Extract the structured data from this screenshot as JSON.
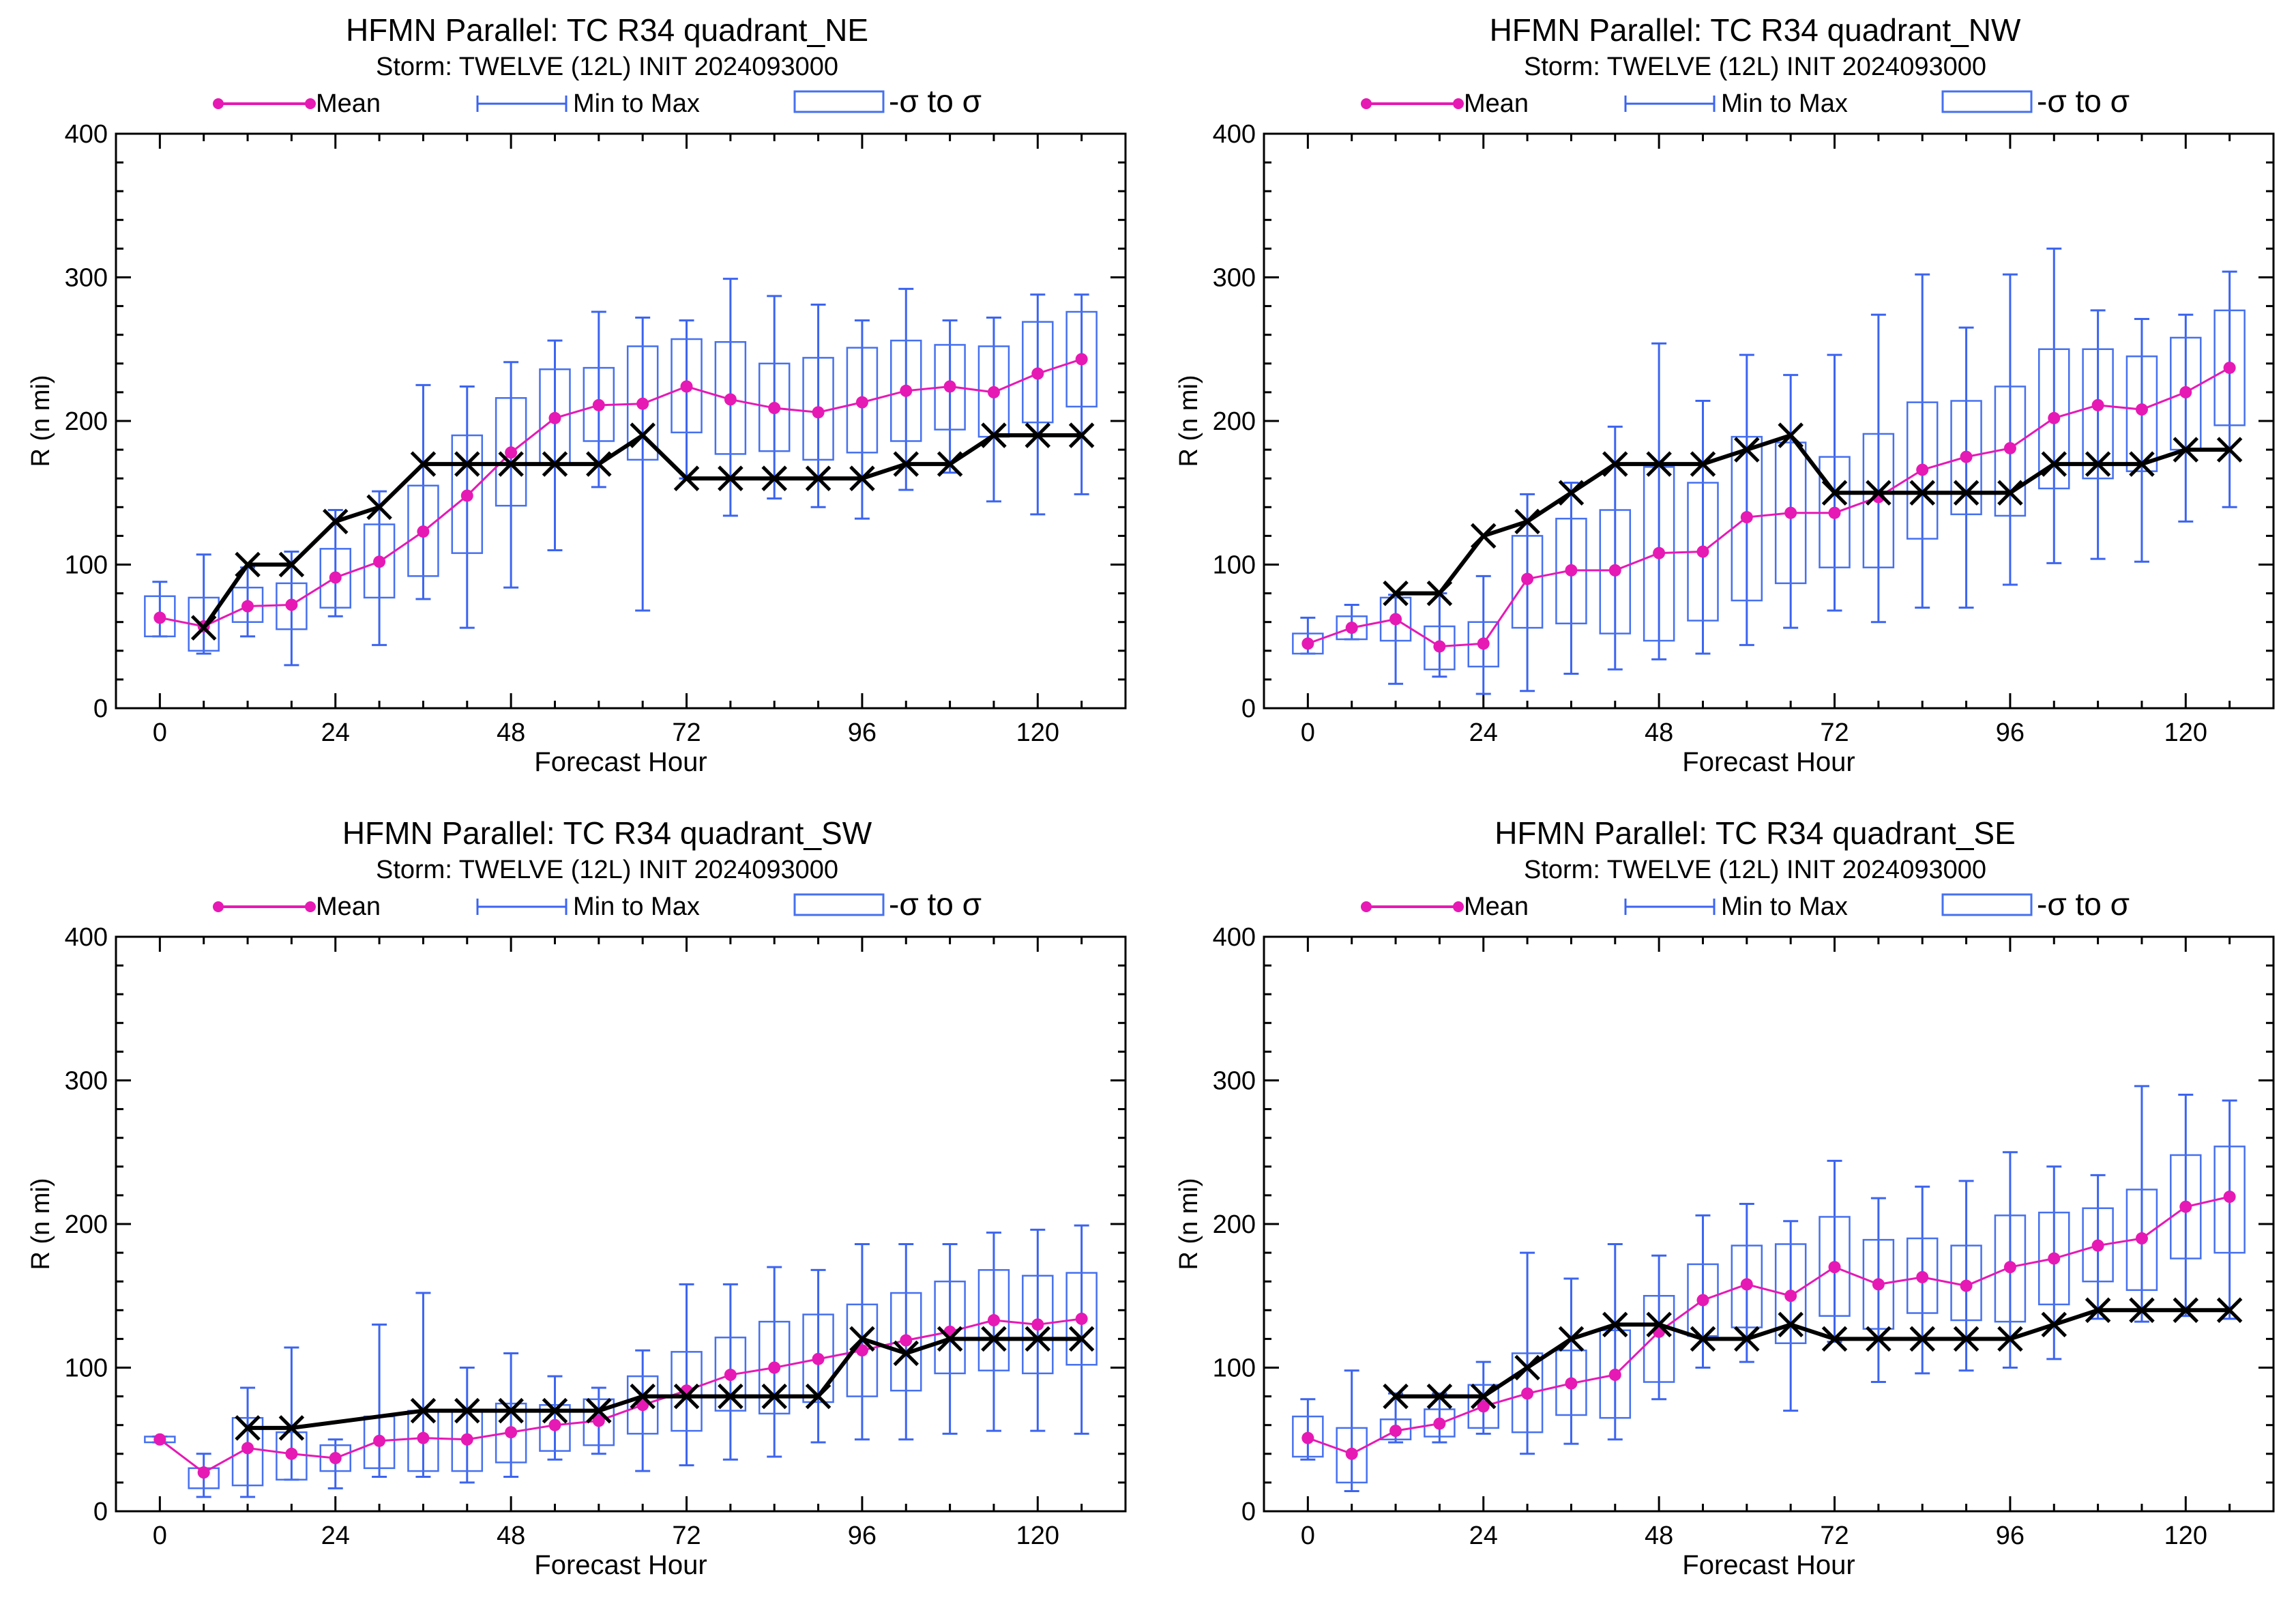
{
  "legend_labels": {
    "mean": "Mean",
    "minmax": "Min to Max",
    "sigma": "-σ to σ"
  },
  "colors": {
    "mean": "#e619b4",
    "minmax": "#3c64f0",
    "box": "#4670ee",
    "observed": "#000000"
  },
  "chart_data": [
    {
      "type": "box",
      "title": "HFMN Parallel: TC  R34 quadrant_NE",
      "subtitle": "Storm: TWELVE (12L) INIT 2024093000",
      "xlabel": "Forecast Hour",
      "ylabel": "R (n mi)",
      "xlim": [
        -6,
        132
      ],
      "ylim": [
        0,
        400
      ],
      "xticks": [
        0,
        24,
        48,
        72,
        96,
        120
      ],
      "yticks": [
        0,
        100,
        200,
        300,
        400
      ],
      "x": [
        0,
        6,
        12,
        18,
        24,
        30,
        36,
        42,
        48,
        54,
        60,
        66,
        72,
        78,
        84,
        90,
        96,
        102,
        108,
        114,
        120,
        126
      ],
      "mean": [
        63,
        57,
        71,
        72,
        91,
        102,
        123,
        148,
        178,
        202,
        211,
        212,
        224,
        215,
        209,
        206,
        213,
        221,
        224,
        220,
        233,
        243
      ],
      "min": [
        50,
        38,
        50,
        30,
        64,
        44,
        76,
        56,
        84,
        110,
        154,
        68,
        160,
        134,
        146,
        140,
        132,
        152,
        164,
        144,
        135,
        149
      ],
      "max": [
        88,
        107,
        98,
        109,
        138,
        151,
        225,
        224,
        241,
        256,
        276,
        272,
        270,
        299,
        287,
        281,
        270,
        292,
        270,
        272,
        288,
        288
      ],
      "sigma_low": [
        50,
        40,
        60,
        55,
        70,
        77,
        92,
        108,
        141,
        170,
        186,
        173,
        192,
        177,
        179,
        173,
        178,
        186,
        194,
        189,
        199,
        210
      ],
      "sigma_high": [
        78,
        77,
        84,
        87,
        111,
        128,
        155,
        190,
        216,
        236,
        237,
        252,
        257,
        255,
        240,
        244,
        251,
        256,
        253,
        252,
        269,
        276
      ],
      "observed": {
        "x": [
          6,
          12,
          18,
          24,
          30,
          36,
          42,
          48,
          54,
          60,
          66,
          72,
          78,
          84,
          90,
          96,
          102,
          108,
          114,
          120,
          126
        ],
        "y": [
          56,
          100,
          100,
          130,
          140,
          170,
          170,
          170,
          170,
          170,
          190,
          160,
          160,
          160,
          160,
          160,
          170,
          170,
          190,
          190,
          190
        ]
      }
    },
    {
      "type": "box",
      "title": "HFMN Parallel: TC  R34 quadrant_NW",
      "subtitle": "Storm: TWELVE (12L) INIT 2024093000",
      "xlabel": "Forecast Hour",
      "ylabel": "R (n mi)",
      "xlim": [
        -6,
        132
      ],
      "ylim": [
        0,
        400
      ],
      "xticks": [
        0,
        24,
        48,
        72,
        96,
        120
      ],
      "yticks": [
        0,
        100,
        200,
        300,
        400
      ],
      "x": [
        0,
        6,
        12,
        18,
        24,
        30,
        36,
        42,
        48,
        54,
        60,
        66,
        72,
        78,
        84,
        90,
        96,
        102,
        108,
        114,
        120,
        126
      ],
      "mean": [
        45,
        56,
        62,
        43,
        45,
        90,
        96,
        96,
        108,
        109,
        133,
        136,
        136,
        147,
        166,
        175,
        181,
        202,
        211,
        208,
        220,
        237
      ],
      "min": [
        38,
        48,
        17,
        22,
        10,
        12,
        24,
        27,
        34,
        38,
        44,
        56,
        68,
        60,
        70,
        70,
        86,
        101,
        104,
        102,
        130,
        140
      ],
      "max": [
        63,
        72,
        79,
        80,
        92,
        149,
        157,
        196,
        254,
        214,
        246,
        232,
        246,
        274,
        302,
        265,
        302,
        320,
        277,
        271,
        274,
        304
      ],
      "sigma_low": [
        38,
        48,
        47,
        27,
        29,
        56,
        59,
        52,
        47,
        61,
        75,
        87,
        98,
        98,
        118,
        135,
        134,
        153,
        160,
        165,
        180,
        197
      ],
      "sigma_high": [
        52,
        64,
        77,
        57,
        60,
        120,
        132,
        138,
        168,
        157,
        189,
        185,
        175,
        191,
        213,
        214,
        224,
        250,
        250,
        245,
        258,
        277
      ],
      "observed": {
        "x": [
          12,
          18,
          24,
          30,
          36,
          42,
          48,
          54,
          60,
          66,
          72,
          78,
          84,
          90,
          96,
          102,
          108,
          114,
          120,
          126
        ],
        "y": [
          80,
          80,
          120,
          130,
          150,
          170,
          170,
          170,
          180,
          190,
          150,
          150,
          150,
          150,
          150,
          170,
          170,
          170,
          180,
          180
        ]
      }
    },
    {
      "type": "box",
      "title": "HFMN Parallel: TC  R34 quadrant_SW",
      "subtitle": "Storm: TWELVE (12L) INIT 2024093000",
      "xlabel": "Forecast Hour",
      "ylabel": "R (n mi)",
      "xlim": [
        -6,
        132
      ],
      "ylim": [
        0,
        400
      ],
      "xticks": [
        0,
        24,
        48,
        72,
        96,
        120
      ],
      "yticks": [
        0,
        100,
        200,
        300,
        400
      ],
      "x": [
        0,
        6,
        12,
        18,
        24,
        30,
        36,
        42,
        48,
        54,
        60,
        66,
        72,
        78,
        84,
        90,
        96,
        102,
        108,
        114,
        120,
        126
      ],
      "mean": [
        50,
        27,
        44,
        40,
        37,
        49,
        51,
        50,
        55,
        60,
        63,
        74,
        84,
        95,
        100,
        106,
        112,
        119,
        125,
        133,
        130,
        134
      ],
      "min": [
        48,
        10,
        10,
        22,
        16,
        24,
        24,
        20,
        24,
        36,
        40,
        28,
        32,
        36,
        38,
        48,
        50,
        50,
        54,
        56,
        56,
        54
      ],
      "max": [
        52,
        40,
        86,
        114,
        50,
        130,
        152,
        100,
        110,
        94,
        86,
        112,
        158,
        158,
        170,
        168,
        186,
        186,
        186,
        194,
        196,
        199
      ],
      "sigma_low": [
        48,
        16,
        18,
        22,
        28,
        30,
        28,
        28,
        34,
        42,
        46,
        54,
        56,
        70,
        68,
        76,
        80,
        84,
        96,
        98,
        96,
        102
      ],
      "sigma_high": [
        52,
        30,
        65,
        55,
        46,
        66,
        70,
        70,
        75,
        74,
        78,
        94,
        111,
        121,
        132,
        137,
        144,
        152,
        160,
        168,
        164,
        166
      ],
      "observed": {
        "x": [
          12,
          18,
          36,
          42,
          48,
          54,
          60,
          66,
          72,
          78,
          84,
          90,
          96,
          102,
          108,
          114,
          120,
          126
        ],
        "y": [
          58,
          58,
          70,
          70,
          70,
          70,
          70,
          80,
          80,
          80,
          80,
          80,
          120,
          110,
          120,
          120,
          120,
          120
        ]
      }
    },
    {
      "type": "box",
      "title": "HFMN Parallel: TC  R34 quadrant_SE",
      "subtitle": "Storm: TWELVE (12L) INIT 2024093000",
      "xlabel": "Forecast Hour",
      "ylabel": "R (n mi)",
      "xlim": [
        -6,
        132
      ],
      "ylim": [
        0,
        400
      ],
      "xticks": [
        0,
        24,
        48,
        72,
        96,
        120
      ],
      "yticks": [
        0,
        100,
        200,
        300,
        400
      ],
      "x": [
        0,
        6,
        12,
        18,
        24,
        30,
        36,
        42,
        48,
        54,
        60,
        66,
        72,
        78,
        84,
        90,
        96,
        102,
        108,
        114,
        120,
        126
      ],
      "mean": [
        51,
        40,
        56,
        61,
        73,
        82,
        89,
        95,
        125,
        147,
        158,
        150,
        170,
        158,
        163,
        157,
        170,
        176,
        185,
        190,
        212,
        219
      ],
      "min": [
        36,
        14,
        48,
        48,
        54,
        40,
        47,
        50,
        78,
        100,
        104,
        70,
        118,
        90,
        96,
        98,
        100,
        106,
        134,
        132,
        136,
        134
      ],
      "max": [
        78,
        98,
        82,
        82,
        104,
        180,
        162,
        186,
        178,
        206,
        214,
        202,
        244,
        218,
        226,
        230,
        250,
        240,
        234,
        296,
        290,
        286
      ],
      "sigma_low": [
        38,
        20,
        50,
        52,
        58,
        55,
        67,
        65,
        90,
        122,
        128,
        117,
        136,
        127,
        138,
        133,
        132,
        144,
        160,
        154,
        176,
        180
      ],
      "sigma_high": [
        66,
        58,
        64,
        71,
        88,
        110,
        112,
        126,
        150,
        172,
        185,
        186,
        205,
        189,
        190,
        185,
        206,
        208,
        211,
        224,
        248,
        254
      ],
      "observed": {
        "x": [
          12,
          18,
          24,
          30,
          36,
          42,
          48,
          54,
          60,
          66,
          72,
          78,
          84,
          90,
          96,
          102,
          108,
          114,
          120,
          126
        ],
        "y": [
          80,
          80,
          80,
          100,
          120,
          130,
          130,
          120,
          120,
          130,
          120,
          120,
          120,
          120,
          120,
          130,
          140,
          140,
          140,
          140
        ]
      }
    }
  ]
}
